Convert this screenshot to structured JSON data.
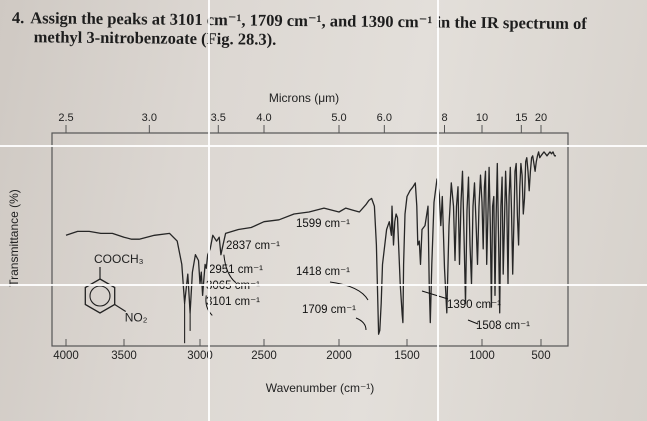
{
  "question": {
    "number": "4.",
    "line1": "Assign the peaks at 3101 cm⁻¹, 1709 cm⁻¹, and 1390 cm⁻¹ in the IR spectrum of",
    "line2": "methyl 3-nitrobenzoate (Fig. 28.3)."
  },
  "chart_data": {
    "type": "line",
    "title": "",
    "top_axis_label": "Microns (μm)",
    "top_ticks": [
      {
        "label": "2.5",
        "um": 2.5
      },
      {
        "label": "3.0",
        "um": 3.0
      },
      {
        "label": "3.5",
        "um": 3.5
      },
      {
        "label": "4.0",
        "um": 4.0
      },
      {
        "label": "5.0",
        "um": 5.0
      },
      {
        "label": "6.0",
        "um": 6.0
      },
      {
        "label": "8",
        "um": 8.0
      },
      {
        "label": "10",
        "um": 10.0
      },
      {
        "label": "15",
        "um": 15.0
      },
      {
        "label": "20",
        "um": 20.0
      }
    ],
    "xlabel": "Wavenumber (cm⁻¹)",
    "ylabel": "Transmittance (%)",
    "x_ticks": [
      4000,
      3500,
      3000,
      2500,
      2000,
      1500,
      1000,
      500
    ],
    "xlim": [
      4000,
      400
    ],
    "ylim": [
      0,
      100
    ],
    "series": [
      {
        "x": [
          4000,
          3900,
          3800,
          3700,
          3600,
          3500,
          3450,
          3400,
          3300,
          3200,
          3150,
          3120,
          3101,
          3090,
          3080,
          3065,
          3050,
          3030,
          3010,
          3000,
          2990,
          2980,
          2970,
          2960,
          2951,
          2940,
          2920,
          2900,
          2870,
          2850,
          2837,
          2820,
          2800,
          2700,
          2600,
          2500,
          2400,
          2300,
          2200,
          2100,
          2000,
          1950,
          1900,
          1850,
          1800,
          1780,
          1760,
          1740,
          1725,
          1709,
          1700,
          1690,
          1680,
          1650,
          1630,
          1615,
          1610,
          1599,
          1590,
          1580,
          1570,
          1550,
          1535,
          1530,
          1525,
          1515,
          1500,
          1480,
          1460,
          1445,
          1435,
          1428,
          1418,
          1410,
          1400,
          1380,
          1360,
          1352,
          1345,
          1335,
          1320,
          1300,
          1285,
          1275,
          1265,
          1250,
          1235,
          1220,
          1205,
          1190,
          1180,
          1170,
          1160,
          1150,
          1140,
          1130,
          1120,
          1110,
          1100,
          1090,
          1080,
          1070,
          1060,
          1050,
          1040,
          1030,
          1020,
          1010,
          1000,
          990,
          980,
          970,
          960,
          950,
          940,
          930,
          920,
          910,
          900,
          890,
          880,
          870,
          860,
          850,
          840,
          830,
          820,
          810,
          800,
          790,
          780,
          770,
          760,
          750,
          740,
          730,
          720,
          710,
          700,
          690,
          680,
          670,
          660,
          650,
          640,
          630,
          620,
          610,
          600,
          590,
          580,
          570,
          560,
          550,
          540,
          530,
          520,
          510,
          500,
          490,
          480,
          470,
          460,
          450,
          440,
          430,
          420,
          410,
          400
        ],
        "y": [
          55,
          57,
          57,
          56,
          56,
          54,
          53,
          53,
          55,
          56,
          52,
          40,
          20,
          28,
          35,
          15,
          36,
          45,
          42,
          30,
          36,
          24,
          32,
          40,
          38,
          45,
          48,
          55,
          52,
          54,
          45,
          50,
          56,
          58,
          59,
          62,
          63,
          66,
          67,
          69,
          67,
          69,
          68,
          67,
          71,
          73,
          74,
          70,
          50,
          4,
          6,
          20,
          40,
          58,
          62,
          55,
          70,
          50,
          62,
          66,
          64,
          30,
          14,
          10,
          40,
          66,
          75,
          78,
          80,
          82,
          70,
          50,
          52,
          40,
          58,
          60,
          70,
          30,
          10,
          40,
          72,
          84,
          76,
          60,
          75,
          38,
          15,
          60,
          82,
          70,
          42,
          70,
          80,
          40,
          72,
          88,
          55,
          20,
          68,
          85,
          50,
          30,
          70,
          82,
          62,
          40,
          70,
          86,
          72,
          48,
          80,
          88,
          40,
          65,
          90,
          60,
          18,
          70,
          75,
          24,
          66,
          92,
          55,
          15,
          70,
          85,
          35,
          60,
          88,
          70,
          30,
          75,
          90,
          68,
          35,
          62,
          88,
          92,
          65,
          50,
          80,
          92,
          86,
          66,
          74,
          93,
          95,
          88,
          78,
          88,
          95,
          96,
          92,
          88,
          93,
          96,
          98,
          95,
          96,
          97,
          98,
          97,
          96,
          97,
          98,
          97,
          98,
          96,
          96
        ]
      }
    ],
    "structure": {
      "substituent_top": "COOCH₃",
      "substituent_bottom": "NO₂"
    },
    "annotations": [
      {
        "label": "2837 cm⁻¹",
        "x": 2837
      },
      {
        "label": "2951 cm⁻¹",
        "x": 2951
      },
      {
        "label": "3065 cm⁻¹",
        "x": 3065
      },
      {
        "label": "3101 cm⁻¹",
        "x": 3101
      },
      {
        "label": "1599 cm⁻¹",
        "x": 1599
      },
      {
        "label": "1418 cm⁻¹",
        "x": 1418
      },
      {
        "label": "1709 cm⁻¹",
        "x": 1709
      },
      {
        "label": "1390 cm⁻¹",
        "x": 1390
      },
      {
        "label": "1508 cm⁻¹",
        "x": 1508
      }
    ],
    "colors": {
      "trace": "#262626",
      "grid": "#555555",
      "overlay": "#ffffff"
    }
  }
}
